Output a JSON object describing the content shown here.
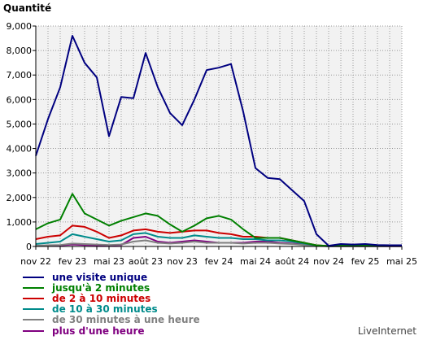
{
  "chart_data": {
    "type": "line",
    "ylabel": "Quantité",
    "xlabel": "",
    "title": "",
    "ylim": [
      0,
      9000
    ],
    "yticks": [
      "0",
      "1,000",
      "2,000",
      "3,000",
      "4,000",
      "5,000",
      "6,000",
      "7,000",
      "8,000",
      "9,000"
    ],
    "ytick_values": [
      0,
      1000,
      2000,
      3000,
      4000,
      5000,
      6000,
      7000,
      8000,
      9000
    ],
    "xticks": [
      "nov 22",
      "fev 23",
      "mai 23",
      "août 23",
      "nov 23",
      "fev 24",
      "mai 24",
      "août 24",
      "nov 24",
      "fev 25",
      "mai 25"
    ],
    "x": [
      "nov 22",
      "déc 22",
      "jan 23",
      "fev 23",
      "mar 23",
      "avr 23",
      "mai 23",
      "juin 23",
      "juil 23",
      "août 23",
      "sep 23",
      "oct 23",
      "nov 23",
      "déc 23",
      "jan 24",
      "fev 24",
      "mar 24",
      "avr 24",
      "mai 24",
      "juin 24",
      "juil 24",
      "août 24",
      "sep 24",
      "oct 24",
      "nov 24",
      "déc 24",
      "jan 25",
      "fev 25",
      "mar 25",
      "avr 25",
      "mai 25"
    ],
    "grid": true,
    "legend_position": "bottom-left",
    "series": [
      {
        "name": "une visite unique",
        "color": "#000080",
        "values": [
          3700,
          5200,
          6500,
          8600,
          7500,
          6900,
          4500,
          6100,
          6050,
          7900,
          6500,
          5450,
          4950,
          6000,
          7200,
          7300,
          7450,
          5500,
          3200,
          2800,
          2750,
          2300,
          1850,
          500,
          30,
          100,
          80,
          100,
          60,
          50,
          50
        ]
      },
      {
        "name": "jusqu'à 2 minutes",
        "color": "#008000",
        "values": [
          700,
          950,
          1100,
          2150,
          1350,
          1100,
          850,
          1050,
          1200,
          1350,
          1250,
          900,
          600,
          850,
          1150,
          1250,
          1100,
          700,
          350,
          350,
          350,
          250,
          150,
          50,
          20,
          40,
          30,
          40,
          30,
          20,
          20
        ]
      },
      {
        "name": "de 2 à 10 minutes",
        "color": "#cc0000",
        "values": [
          300,
          400,
          450,
          850,
          800,
          600,
          350,
          450,
          650,
          700,
          600,
          550,
          600,
          650,
          650,
          550,
          500,
          400,
          400,
          350,
          350,
          250,
          150,
          50,
          15,
          30,
          25,
          30,
          25,
          20,
          20
        ]
      },
      {
        "name": "de 10 à 30 minutes",
        "color": "#008b8b",
        "values": [
          100,
          150,
          200,
          500,
          400,
          300,
          200,
          250,
          500,
          550,
          400,
          350,
          350,
          450,
          400,
          350,
          350,
          300,
          300,
          250,
          250,
          200,
          120,
          40,
          10,
          25,
          20,
          25,
          20,
          15,
          15
        ]
      },
      {
        "name": "de 30 minutes à une heure",
        "color": "#808080",
        "values": [
          30,
          50,
          60,
          120,
          100,
          80,
          60,
          80,
          200,
          250,
          150,
          120,
          150,
          200,
          150,
          150,
          150,
          120,
          150,
          150,
          120,
          100,
          60,
          20,
          5,
          10,
          10,
          10,
          10,
          5,
          5
        ]
      },
      {
        "name": "plus d'une heure",
        "color": "#800080",
        "values": [
          20,
          30,
          40,
          80,
          60,
          50,
          40,
          60,
          350,
          400,
          200,
          150,
          200,
          250,
          200,
          150,
          150,
          150,
          200,
          200,
          150,
          120,
          80,
          30,
          5,
          10,
          10,
          10,
          10,
          5,
          5
        ]
      }
    ]
  },
  "watermark": "LiveInternet"
}
